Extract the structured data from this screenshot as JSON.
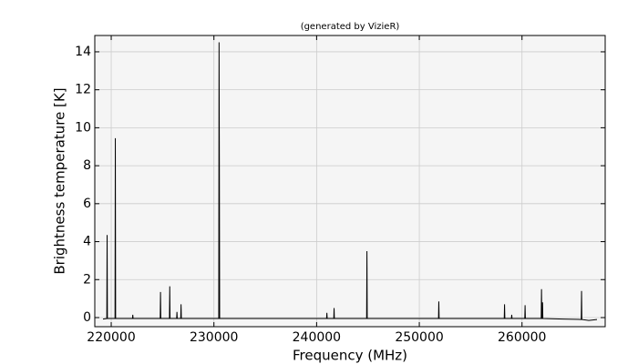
{
  "chart_data": {
    "type": "line",
    "title": "(generated by VizieR)",
    "xlabel": "Frequency (MHz)",
    "ylabel": "Brightness temperature [K]",
    "color": "#000000",
    "grid": true,
    "x": [
      219200,
      219570,
      219600,
      219630,
      220370,
      220400,
      220430,
      222070,
      222100,
      222130,
      224770,
      224800,
      224830,
      225670,
      225700,
      225730,
      226370,
      226400,
      226430,
      226770,
      226800,
      226830,
      230470,
      230500,
      230530,
      230560,
      235000,
      236600,
      239400,
      240970,
      241000,
      241030,
      241670,
      241700,
      241730,
      244000,
      244870,
      244900,
      244930,
      248000,
      251870,
      251900,
      251930,
      255000,
      258270,
      258300,
      258330,
      258970,
      259000,
      259030,
      260270,
      260300,
      260330,
      261870,
      261900,
      261930,
      261970,
      262000,
      262030,
      264000,
      265770,
      265800,
      265830,
      266500,
      267300
    ],
    "values": [
      -0.08,
      -0.05,
      4.35,
      -0.05,
      -0.05,
      9.45,
      -0.05,
      -0.05,
      0.15,
      -0.05,
      -0.05,
      1.35,
      -0.05,
      -0.05,
      1.65,
      -0.05,
      -0.05,
      0.3,
      -0.05,
      -0.05,
      0.7,
      -0.05,
      -0.05,
      14.5,
      8.2,
      -0.05,
      -0.05,
      -0.05,
      -0.05,
      -0.05,
      0.25,
      -0.05,
      -0.05,
      0.5,
      -0.05,
      -0.05,
      -0.05,
      3.5,
      -0.05,
      -0.05,
      -0.05,
      0.85,
      -0.05,
      -0.05,
      -0.05,
      0.7,
      -0.05,
      -0.05,
      0.15,
      -0.05,
      -0.05,
      0.65,
      -0.05,
      -0.05,
      1.5,
      -0.05,
      -0.05,
      0.8,
      -0.05,
      -0.08,
      -0.1,
      1.4,
      -0.1,
      -0.15,
      -0.1
    ],
    "xlim": [
      218400,
      268100
    ],
    "ylim": [
      -0.48,
      14.86
    ],
    "xticks": [
      220000,
      230000,
      240000,
      250000,
      260000
    ],
    "yticks": [
      0,
      2,
      4,
      6,
      8,
      10,
      12,
      14
    ]
  }
}
